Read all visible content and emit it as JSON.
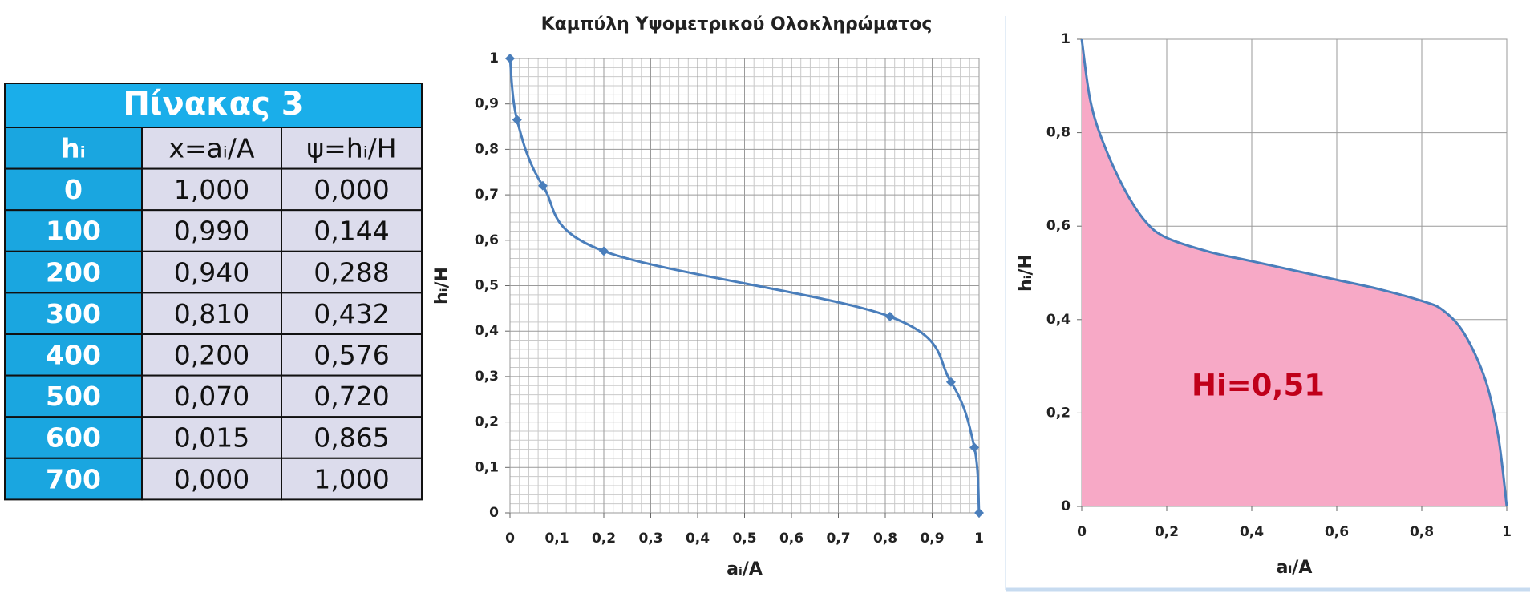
{
  "table": {
    "title": "Πίνακας 3",
    "columns": [
      "hᵢ",
      "x=aᵢ/A",
      "ψ=hᵢ/H"
    ],
    "rows": [
      [
        "0",
        "1,000",
        "0,000"
      ],
      [
        "100",
        "0,990",
        "0,144"
      ],
      [
        "200",
        "0,940",
        "0,288"
      ],
      [
        "300",
        "0,810",
        "0,432"
      ],
      [
        "400",
        "0,200",
        "0,576"
      ],
      [
        "500",
        "0,070",
        "0,720"
      ],
      [
        "600",
        "0,015",
        "0,865"
      ],
      [
        "700",
        "0,000",
        "1,000"
      ]
    ]
  },
  "chart_data": [
    {
      "type": "line",
      "title": "Καμπύλη Υψομετρικού Ολοκληρώματος",
      "x_label": "aᵢ/A",
      "y_label": "hᵢ/H",
      "x": [
        0,
        0.015,
        0.07,
        0.2,
        0.81,
        0.94,
        0.99,
        1
      ],
      "values": [
        1,
        0.865,
        0.72,
        0.576,
        0.432,
        0.288,
        0.144,
        0
      ],
      "color": "#4a7ebb",
      "markers": true,
      "grid": true,
      "minor_grid": true,
      "xlim": [
        0,
        1
      ],
      "ylim": [
        0,
        1
      ],
      "xticks": [
        0,
        {
          "value": 0.1,
          "label": "0,1"
        },
        {
          "value": 0.2,
          "label": "0,2"
        },
        {
          "value": 0.3,
          "label": "0,3"
        },
        {
          "value": 0.4,
          "label": "0,4"
        },
        {
          "value": 0.5,
          "label": "0,5"
        },
        {
          "value": 0.6,
          "label": "0,6"
        },
        {
          "value": 0.7,
          "label": "0,7"
        },
        {
          "value": 0.8,
          "label": "0,8"
        },
        {
          "value": 0.9,
          "label": "0,9"
        },
        1
      ],
      "yticks": [
        0,
        {
          "value": 0.1,
          "label": "0,1"
        },
        {
          "value": 0.2,
          "label": "0,2"
        },
        {
          "value": 0.3,
          "label": "0,3"
        },
        {
          "value": 0.4,
          "label": "0,4"
        },
        {
          "value": 0.5,
          "label": "0,5"
        },
        {
          "value": 0.6,
          "label": "0,6"
        },
        {
          "value": 0.7,
          "label": "0,7"
        },
        {
          "value": 0.8,
          "label": "0,8"
        },
        {
          "value": 0.9,
          "label": "0,9"
        },
        1
      ]
    },
    {
      "type": "area",
      "x_label": "aᵢ/A",
      "y_label": "hᵢ/H",
      "annotation": "Hi=0,51",
      "x": [
        0,
        0.02,
        0.05,
        0.1,
        0.15,
        0.2,
        0.3,
        0.4,
        0.5,
        0.6,
        0.7,
        0.8,
        0.85,
        0.9,
        0.95,
        0.98,
        1
      ],
      "values": [
        1,
        0.87,
        0.78,
        0.68,
        0.61,
        0.575,
        0.545,
        0.525,
        0.505,
        0.485,
        0.465,
        0.44,
        0.42,
        0.37,
        0.27,
        0.15,
        0
      ],
      "color": "#4a7ebb",
      "fill": "#f7a9c6",
      "grid": true,
      "xlim": [
        0,
        1
      ],
      "ylim": [
        0,
        1
      ],
      "xticks": [
        0,
        {
          "value": 0.2,
          "label": "0,2"
        },
        {
          "value": 0.4,
          "label": "0,4"
        },
        {
          "value": 0.6,
          "label": "0,6"
        },
        {
          "value": 0.8,
          "label": "0,8"
        },
        1
      ],
      "yticks": [
        0,
        {
          "value": 0.2,
          "label": "0,2"
        },
        {
          "value": 0.4,
          "label": "0,4"
        },
        {
          "value": 0.6,
          "label": "0,6"
        },
        {
          "value": 0.8,
          "label": "0,8"
        },
        1
      ]
    }
  ]
}
